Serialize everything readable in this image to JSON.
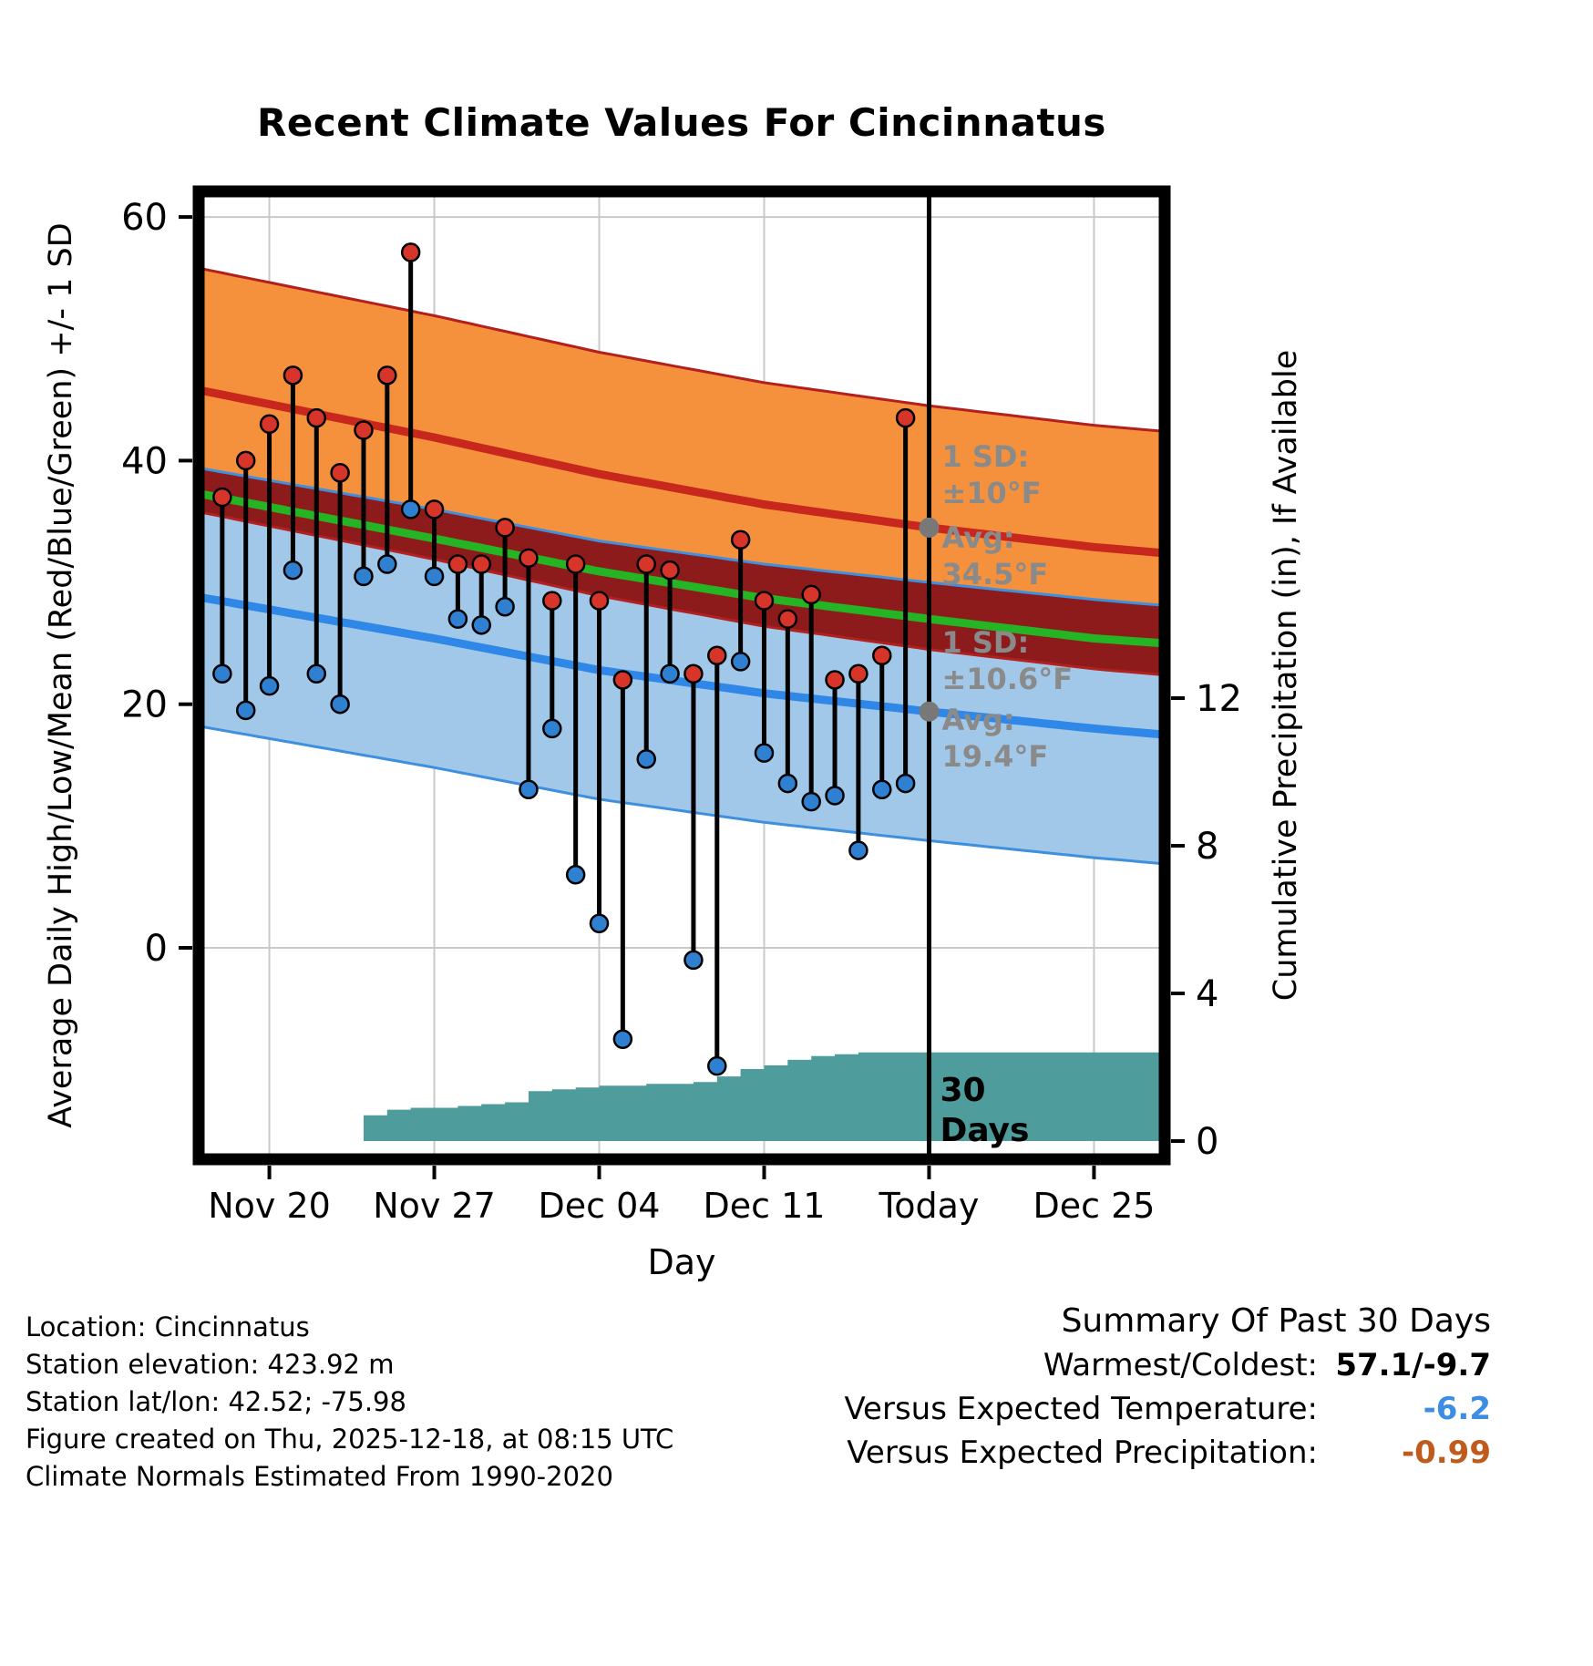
{
  "title": "Recent Climate Values For Cincinnatus",
  "axes": {
    "left_label": "Average Daily High/Low/Mean (Red/Blue/Green) +/- 1 SD",
    "right_label": "Cumulative Precipitation (in), If Available",
    "x_label": "Day",
    "left_ticks": [
      0,
      20,
      40,
      60
    ],
    "right_ticks": [
      0,
      4,
      8,
      12
    ],
    "x_ticks": [
      {
        "label": "Nov 20",
        "d": 3
      },
      {
        "label": "Nov 27",
        "d": 10
      },
      {
        "label": "Dec 04",
        "d": 17
      },
      {
        "label": "Dec 11",
        "d": 24
      },
      {
        "label": "Today",
        "d": 31
      },
      {
        "label": "Dec 25",
        "d": 38
      }
    ]
  },
  "chart_data": {
    "type": "line",
    "description": "Daily observed high/low temperature stems over climatological normal bands (+/- 1 SD), with cumulative precipitation area on secondary axis",
    "x_unit": "days since 2025-11-17",
    "x_domain_days": 41,
    "today_d": 31,
    "temp_axis_ticks": [
      0,
      20,
      40,
      60
    ],
    "precip_axis_ticks": [
      0,
      4,
      8,
      12
    ],
    "daily": {
      "days": [
        1,
        2,
        3,
        4,
        5,
        6,
        7,
        8,
        9,
        10,
        11,
        12,
        13,
        14,
        15,
        16,
        17,
        18,
        19,
        20,
        21,
        22,
        23,
        24,
        25,
        26,
        27,
        28,
        29,
        30
      ],
      "highs": [
        37.0,
        40.0,
        43.0,
        47.0,
        43.5,
        39.0,
        42.5,
        47.0,
        57.1,
        36.0,
        31.5,
        31.5,
        34.5,
        32.0,
        28.5,
        31.5,
        28.5,
        22.0,
        31.5,
        31.0,
        22.5,
        24.0,
        33.5,
        28.5,
        27.0,
        29.0,
        22.0,
        22.5,
        24.0,
        43.5
      ],
      "lows": [
        22.5,
        19.5,
        21.5,
        31.0,
        22.5,
        20.0,
        30.5,
        31.5,
        36.0,
        30.5,
        27.0,
        26.5,
        28.0,
        13.0,
        18.0,
        6.0,
        2.0,
        -7.5,
        15.5,
        22.5,
        -1.0,
        -9.7,
        23.5,
        16.0,
        13.5,
        12.0,
        12.5,
        8.0,
        13.0,
        13.5
      ]
    },
    "normals": {
      "days": [
        0,
        10,
        17,
        24,
        31,
        38,
        41
      ],
      "high_mean": [
        45.8,
        41.9,
        38.9,
        36.4,
        34.5,
        32.9,
        32.4
      ],
      "low_mean": [
        28.8,
        25.4,
        22.8,
        20.9,
        19.4,
        18.0,
        17.5
      ],
      "mean": [
        37.3,
        33.6,
        30.9,
        28.7,
        27.0,
        25.4,
        25.0
      ],
      "high_sd": 10.0,
      "low_sd": 10.6,
      "avg_high_today": 34.5,
      "avg_low_today": 19.4
    },
    "precip": {
      "days": [
        7,
        8,
        9,
        10,
        11,
        12,
        13,
        14,
        15,
        16,
        17,
        18,
        19,
        20,
        21,
        22,
        23,
        24,
        25,
        26,
        27,
        28,
        29,
        30
      ],
      "cumulative": [
        0.7,
        0.85,
        0.9,
        0.9,
        0.95,
        1.0,
        1.05,
        1.35,
        1.4,
        1.45,
        1.5,
        1.5,
        1.55,
        1.55,
        1.6,
        1.75,
        1.95,
        2.05,
        2.2,
        2.3,
        2.35,
        2.4,
        2.4,
        2.4
      ]
    }
  },
  "annotations": {
    "high_sd_label": "1 SD:",
    "high_sd_value": "±10°F",
    "high_avg_label": "Avg:",
    "high_avg_value": "34.5°F",
    "low_sd_label": "1 SD:",
    "low_sd_value": "±10.6°F",
    "low_avg_label": "Avg:",
    "low_avg_value": "19.4°F",
    "period_line1": "30",
    "period_line2": "Days"
  },
  "footer_left": [
    "Location: Cincinnatus",
    "Station elevation: 423.92 m",
    "Station lat/lon: 42.52; -75.98",
    "Figure created on Thu, 2025-12-18, at 08:15 UTC",
    "Climate Normals Estimated From 1990-2020"
  ],
  "summary": {
    "title": "Summary Of Past 30 Days",
    "rows": [
      {
        "label": "Warmest/Coldest:",
        "value": "57.1/-9.7",
        "color": "#000000"
      },
      {
        "label": "Versus Expected Temperature:",
        "value": "-6.2",
        "color": "#3B8EE4"
      },
      {
        "label": "Versus Expected Precipitation:",
        "value": "-0.99",
        "color": "#BF5B1D"
      }
    ]
  },
  "colors": {
    "high_band": "#F5913C",
    "low_band": "#A1C8E8",
    "overlap_band": "#8E1B1B",
    "high_band_edge": "#B22020",
    "low_band_edge": "#3E8FDE",
    "high_mean_line": "#C8271E",
    "low_mean_line": "#2F87E8",
    "climate_mean_line": "#24B424",
    "high_dot": "#D8352A",
    "low_dot": "#2F80D0",
    "stem": "#000000",
    "precip_area": "#4F9C9C",
    "grid": "#C9C9C9",
    "annotation_gray": "#8A8A8A",
    "marker_gray": "#787878"
  }
}
